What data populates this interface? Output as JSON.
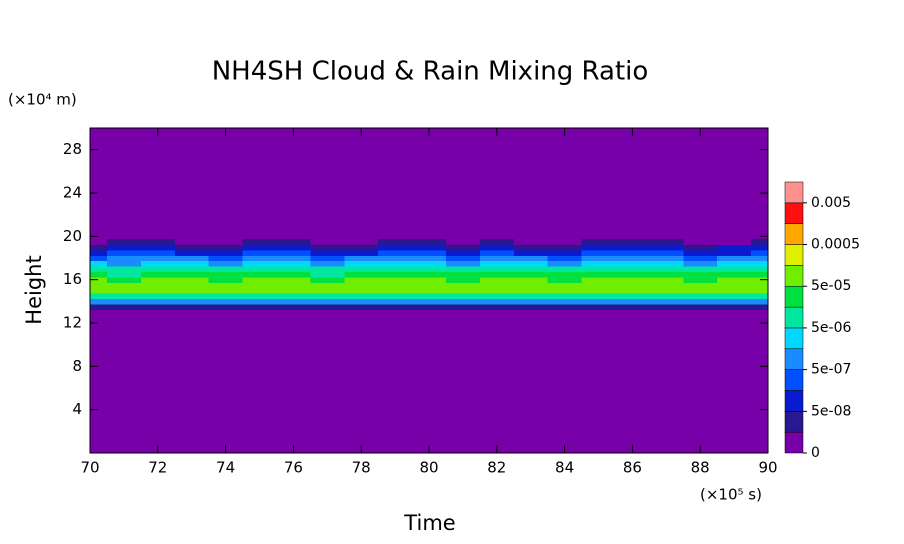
{
  "chart_data": {
    "type": "contour",
    "title": "NH4SH Cloud & Rain Mixing Ratio",
    "x_label": "Time",
    "y_label": "Height",
    "x_unit": "(×10⁵ s)",
    "y_unit": "(×10⁴ m)",
    "xlim": [
      70,
      90
    ],
    "xticks": [
      70,
      72,
      74,
      76,
      78,
      80,
      82,
      84,
      86,
      88,
      90
    ],
    "ylim": [
      0,
      30
    ],
    "yticks": [
      4,
      8,
      12,
      16,
      20,
      24,
      28
    ],
    "x": [
      70,
      71,
      72,
      73,
      74,
      75,
      76,
      77,
      78,
      79,
      80,
      81,
      82,
      83,
      84,
      85,
      86,
      87,
      88,
      89,
      90
    ],
    "y": [
      13.5,
      14,
      14.5,
      15,
      15.5,
      16,
      16.5,
      17,
      17.5,
      18,
      18.5,
      19,
      19.5
    ],
    "z": [
      [
        2e-08,
        3e-08,
        2e-08,
        2e-08,
        3e-08,
        2e-08,
        2e-08,
        3e-08,
        2e-08,
        2e-08,
        3e-08,
        2e-08,
        2e-08,
        3e-08,
        2e-08,
        2e-08,
        3e-08,
        2e-08,
        2e-08,
        3e-08,
        2e-08
      ],
      [
        1e-06,
        9e-07,
        1.2e-06,
        1e-06,
        8e-07,
        1.1e-06,
        1e-06,
        9e-07,
        1.2e-06,
        1e-06,
        1e-06,
        9e-07,
        1.1e-06,
        1e-06,
        8e-07,
        1e-06,
        1.2e-06,
        1e-06,
        9e-07,
        1e-06,
        1e-06
      ],
      [
        1e-05,
        1.2e-05,
        9e-06,
        1.1e-05,
        1e-05,
        1.3e-05,
        1e-05,
        9e-06,
        1.1e-05,
        1e-05,
        1.2e-05,
        1e-05,
        9e-06,
        1.1e-05,
        1e-05,
        1.2e-05,
        1e-05,
        1.1e-05,
        9e-06,
        1e-05,
        1.1e-05
      ],
      [
        6e-05,
        5.5e-05,
        7e-05,
        6e-05,
        6.5e-05,
        5e-05,
        6e-05,
        7e-05,
        6e-05,
        5.5e-05,
        6e-05,
        6.5e-05,
        6e-05,
        5e-05,
        6e-05,
        7e-05,
        6e-05,
        6e-05,
        5.5e-05,
        6e-05,
        6e-05
      ],
      [
        0.0001,
        9e-05,
        0.00012,
        0.0001,
        0.00011,
        9e-05,
        0.0001,
        0.00012,
        0.0001,
        9e-05,
        0.0001,
        0.00011,
        0.0001,
        9e-05,
        0.0001,
        0.00012,
        0.0001,
        0.00011,
        9e-05,
        0.0001,
        0.0001
      ],
      [
        5e-05,
        4e-05,
        6e-05,
        5e-05,
        4.5e-05,
        5e-05,
        6e-05,
        4e-05,
        5e-05,
        5.5e-05,
        5e-05,
        4e-05,
        5e-05,
        6e-05,
        4.5e-05,
        5e-05,
        5e-05,
        6e-05,
        4e-05,
        5e-05,
        5e-05
      ],
      [
        2e-05,
        1.5e-05,
        3e-05,
        2e-05,
        1.8e-05,
        2.5e-05,
        2e-05,
        1.5e-05,
        2e-05,
        2.2e-05,
        2e-05,
        1.7e-05,
        2.5e-05,
        2e-05,
        1.6e-05,
        2e-05,
        2.5e-05,
        2e-05,
        1.8e-05,
        2e-05,
        2e-05
      ],
      [
        8e-06,
        6e-06,
        1.2e-05,
        7e-06,
        5e-06,
        9e-06,
        1.1e-05,
        6e-06,
        8e-06,
        7e-06,
        9e-06,
        5e-06,
        1e-05,
        7e-06,
        6e-06,
        1.2e-05,
        8e-06,
        9e-06,
        6e-06,
        7e-06,
        8e-06
      ],
      [
        2e-06,
        1.5e-06,
        4e-06,
        2e-06,
        1.2e-06,
        3e-06,
        3.5e-06,
        1.5e-06,
        2e-06,
        2.5e-06,
        2e-06,
        1.2e-06,
        3e-06,
        2e-06,
        1.5e-06,
        3.5e-06,
        2e-06,
        2.5e-06,
        1.5e-06,
        2e-06,
        2e-06
      ],
      [
        4e-07,
        6e-07,
        1e-06,
        5e-07,
        3e-07,
        8e-07,
        9e-07,
        4e-07,
        5e-07,
        7e-07,
        6e-07,
        3e-07,
        8e-07,
        5e-07,
        4e-07,
        9e-07,
        6e-07,
        7e-07,
        4e-07,
        5e-07,
        6e-07
      ],
      [
        1e-07,
        2e-07,
        3e-07,
        1.5e-07,
        8e-08,
        2.5e-07,
        3e-07,
        1e-07,
        1.5e-07,
        2e-07,
        2e-07,
        9e-08,
        2.5e-07,
        1.5e-07,
        1e-07,
        3e-07,
        2e-07,
        2e-07,
        1e-07,
        1.5e-07,
        2e-07
      ],
      [
        3e-08,
        6e-08,
        8e-08,
        4e-08,
        2e-08,
        7e-08,
        8e-08,
        3e-08,
        4e-08,
        6e-08,
        5e-08,
        2e-08,
        7e-08,
        4e-08,
        3e-08,
        8e-08,
        6e-08,
        6e-08,
        3e-08,
        5e-08,
        6e-08
      ],
      [
        0,
        1e-08,
        2e-08,
        0,
        0,
        1e-08,
        2e-08,
        0,
        0,
        1e-08,
        1e-08,
        0,
        1e-08,
        0,
        0,
        2e-08,
        1e-08,
        1e-08,
        0,
        0,
        1e-08
      ]
    ],
    "background_color": "#7800a8",
    "levels": [
      0,
      1e-08,
      5e-08,
      1.6e-07,
      5e-07,
      1.6e-06,
      5e-06,
      1.6e-05,
      5e-05,
      0.00016,
      0.0005,
      0.0016,
      0.005
    ],
    "colors": [
      "#7800a8",
      "#2a1890",
      "#0a1ad0",
      "#0050ff",
      "#1a8cff",
      "#00d8ff",
      "#00e8a0",
      "#00e040",
      "#70ee00",
      "#e0f000",
      "#ffa800",
      "#ff1010",
      "#ff9090"
    ],
    "colorbar_ticks": [
      {
        "value": 0.005,
        "label": "0.005"
      },
      {
        "value": 0.0005,
        "label": "0.0005"
      },
      {
        "value": 5e-05,
        "label": "5e-05"
      },
      {
        "value": 5e-06,
        "label": "5e-06"
      },
      {
        "value": 5e-07,
        "label": "5e-07"
      },
      {
        "value": 5e-08,
        "label": "5e-08"
      },
      0
    ]
  }
}
